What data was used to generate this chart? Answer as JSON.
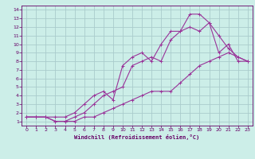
{
  "xlabel": "Windchill (Refroidissement éolien,°C)",
  "bg_color": "#cceee8",
  "grid_color": "#aacccc",
  "line_color": "#993399",
  "xlim": [
    -0.5,
    23.5
  ],
  "ylim": [
    0.5,
    14.5
  ],
  "xticks": [
    0,
    1,
    2,
    3,
    4,
    5,
    6,
    7,
    8,
    9,
    10,
    11,
    12,
    13,
    14,
    15,
    16,
    17,
    18,
    19,
    20,
    21,
    22,
    23
  ],
  "yticks": [
    1,
    2,
    3,
    4,
    5,
    6,
    7,
    8,
    9,
    10,
    11,
    12,
    13,
    14
  ],
  "line1_x": [
    0,
    1,
    2,
    3,
    4,
    5,
    6,
    7,
    8,
    9,
    10,
    11,
    12,
    13,
    14,
    15,
    16,
    17,
    18,
    19,
    20,
    21,
    22,
    23
  ],
  "line1_y": [
    1.5,
    1.5,
    1.5,
    1.0,
    1.0,
    1.0,
    1.5,
    1.5,
    2.0,
    2.5,
    3.0,
    3.5,
    4.0,
    4.5,
    4.5,
    4.5,
    5.5,
    6.5,
    7.5,
    8.0,
    8.5,
    9.0,
    8.5,
    8.0
  ],
  "line2_x": [
    0,
    1,
    2,
    3,
    4,
    5,
    6,
    7,
    8,
    9,
    10,
    11,
    12,
    13,
    14,
    15,
    16,
    17,
    18,
    19,
    20,
    21,
    22,
    23
  ],
  "line2_y": [
    1.5,
    1.5,
    1.5,
    1.0,
    1.0,
    1.5,
    2.0,
    3.0,
    4.0,
    4.5,
    5.0,
    7.5,
    8.0,
    8.5,
    8.0,
    10.5,
    11.5,
    12.0,
    11.5,
    12.5,
    9.0,
    10.0,
    8.0,
    8.0
  ],
  "line3_x": [
    0,
    1,
    2,
    3,
    4,
    5,
    6,
    7,
    8,
    9,
    10,
    11,
    12,
    13,
    14,
    15,
    16,
    17,
    18,
    19,
    20,
    21,
    22,
    23
  ],
  "line3_y": [
    1.5,
    1.5,
    1.5,
    1.5,
    1.5,
    2.0,
    3.0,
    4.0,
    4.5,
    3.5,
    7.5,
    8.5,
    9.0,
    8.0,
    10.0,
    11.5,
    11.5,
    13.5,
    13.5,
    12.5,
    11.0,
    9.5,
    8.5,
    8.0
  ]
}
